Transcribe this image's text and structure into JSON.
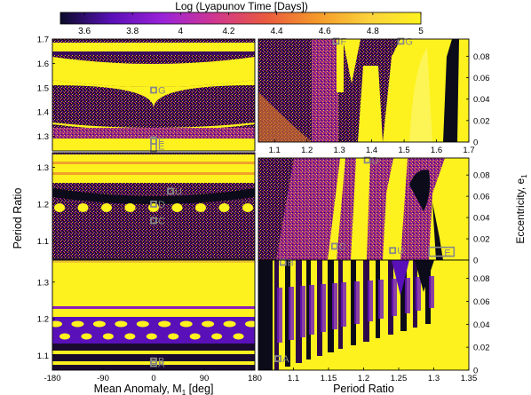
{
  "colorbar": {
    "title": "Log (Lyapunov Time [Days])",
    "ticks": [
      "3.6",
      "3.8",
      "4",
      "4.2",
      "4.4",
      "4.6",
      "4.8",
      "5"
    ],
    "tick_values": [
      3.6,
      3.8,
      4.0,
      4.2,
      4.4,
      4.6,
      4.8,
      5.0
    ],
    "range": [
      3.5,
      5.0
    ],
    "colors": [
      "#0b0b2a",
      "#5a10b8",
      "#9b22d8",
      "#d0368f",
      "#ea5a3e",
      "#f59a2a",
      "#fbd23b",
      "#fdf21e"
    ]
  },
  "chart_data": [
    {
      "type": "heatmap",
      "id": "top-left",
      "xlim": [
        -180,
        180
      ],
      "ylim": [
        1.24,
        1.7
      ],
      "yticks": [
        "1.3",
        "1.4",
        "1.5",
        "1.6",
        "1.7"
      ],
      "ytick_values": [
        1.3,
        1.4,
        1.5,
        1.6,
        1.7
      ],
      "markers": [
        {
          "label": "G",
          "x": 0,
          "y": 1.49
        },
        {
          "label": "F",
          "x": 0,
          "y": 1.28
        },
        {
          "label": "E",
          "x": 0,
          "y": 1.26
        }
      ]
    },
    {
      "type": "heatmap",
      "id": "mid-left",
      "xlim": [
        -180,
        180
      ],
      "ylim": [
        1.05,
        1.34
      ],
      "yticks": [
        "1.1",
        "1.2",
        "1.3"
      ],
      "ytick_values": [
        1.1,
        1.2,
        1.3
      ],
      "markers": [
        {
          "label": "D",
          "x": 0,
          "y": 1.2
        },
        {
          "label": "C",
          "x": 0,
          "y": 1.155
        },
        {
          "label": "U",
          "x": 30,
          "y": 1.235
        }
      ]
    },
    {
      "type": "heatmap",
      "id": "bottom-left",
      "xlim": [
        -180,
        180
      ],
      "ylim": [
        1.06,
        1.36
      ],
      "xticks": [
        "-180",
        "-90",
        "0",
        "90",
        "180"
      ],
      "xtick_values": [
        -180,
        -90,
        0,
        90,
        180
      ],
      "yticks": [
        "1.1",
        "1.2",
        "1.3"
      ],
      "ytick_values": [
        1.1,
        1.2,
        1.3
      ],
      "xlabel": "Mean Anomaly, M",
      "xlabel_sub": "1",
      "xlabel_unit": " [deg]",
      "markers": [
        {
          "label": "B",
          "x": 0,
          "y": 1.085
        },
        {
          "label": "A",
          "x": 0,
          "y": 1.078
        }
      ]
    },
    {
      "type": "heatmap",
      "id": "top-right",
      "xlim": [
        1.05,
        1.7
      ],
      "ylim": [
        0,
        0.096
      ],
      "xticks": [
        "1.1",
        "1.2",
        "1.3",
        "1.4",
        "1.5",
        "1.6",
        "1.7"
      ],
      "xtick_values": [
        1.1,
        1.2,
        1.3,
        1.4,
        1.5,
        1.6,
        1.7
      ],
      "yticks": [
        "0",
        "0.02",
        "0.04",
        "0.06",
        "0.08"
      ],
      "ytick_values": [
        0,
        0.02,
        0.04,
        0.06,
        0.08
      ],
      "markers": [
        {
          "label": "F",
          "x": 1.29,
          "y": 0.094
        },
        {
          "label": "G",
          "x": 1.49,
          "y": 0.094
        }
      ]
    },
    {
      "type": "heatmap",
      "id": "mid-right",
      "xlim": [
        1.05,
        1.34
      ],
      "ylim": [
        0,
        0.096
      ],
      "yticks": [
        "0",
        "0.02",
        "0.04",
        "0.06",
        "0.08"
      ],
      "ytick_values": [
        0,
        0.02,
        0.04,
        0.06,
        0.08
      ],
      "ylabel": "Eccentricity, e",
      "ylabel_sub": "1",
      "markers": [
        {
          "label": "D",
          "x": 1.2,
          "y": 0.094
        },
        {
          "label": "C",
          "x": 1.155,
          "y": 0.013
        },
        {
          "label": "U",
          "x": 1.235,
          "y": 0.009
        },
        {
          "label": "E",
          "x": 1.3,
          "y": 0.007
        }
      ]
    },
    {
      "type": "heatmap",
      "id": "bottom-right",
      "xlim": [
        1.05,
        1.35
      ],
      "ylim": [
        0,
        0.096
      ],
      "xticks": [
        "1.1",
        "1.15",
        "1.2",
        "1.25",
        "1.3",
        "1.35"
      ],
      "xtick_values": [
        1.1,
        1.15,
        1.2,
        1.25,
        1.3,
        1.35
      ],
      "yticks": [
        "0",
        "0.02",
        "0.04",
        "0.06",
        "0.08"
      ],
      "ytick_values": [
        0,
        0.02,
        0.04,
        0.06,
        0.08
      ],
      "xlabel": "Period Ratio",
      "markers": [
        {
          "label": "B",
          "x": 1.085,
          "y": 0.094
        },
        {
          "label": "A",
          "x": 1.078,
          "y": 0.01
        }
      ]
    }
  ],
  "shared_ylabel_left": "Period Ratio"
}
